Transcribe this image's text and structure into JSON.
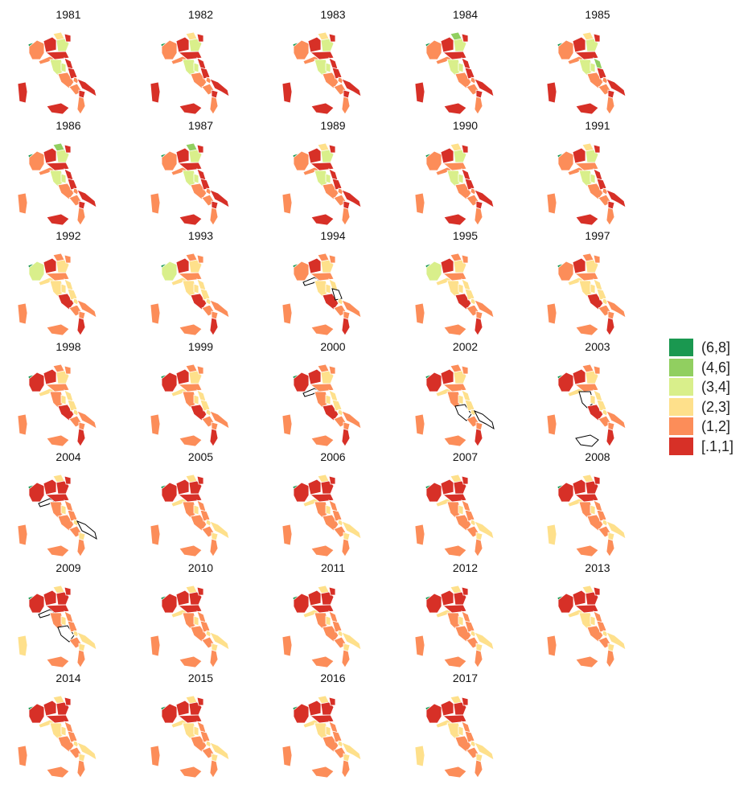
{
  "map_data": {
    "type": "choropleth-small-multiples",
    "region": "Italy",
    "years": [
      "1981",
      "1982",
      "1983",
      "1984",
      "1985",
      "1986",
      "1987",
      "1989",
      "1990",
      "1991",
      "1992",
      "1993",
      "1994",
      "1995",
      "1997",
      "1998",
      "1999",
      "2000",
      "2002",
      "2003",
      "2004",
      "2005",
      "2006",
      "2007",
      "2008",
      "2009",
      "2010",
      "2011",
      "2012",
      "2013",
      "2014",
      "2015",
      "2016",
      "2017"
    ],
    "legend": {
      "items": [
        {
          "label": "(6,8]",
          "color": "#1a9850"
        },
        {
          "label": "(4,6]",
          "color": "#91cf60"
        },
        {
          "label": "(3,4]",
          "color": "#d9ef8b"
        },
        {
          "label": "(2,3]",
          "color": "#fee08b"
        },
        {
          "label": "(1,2]",
          "color": "#fc8d59"
        },
        {
          "label": "[.1,1]",
          "color": "#d73027"
        }
      ]
    }
  }
}
